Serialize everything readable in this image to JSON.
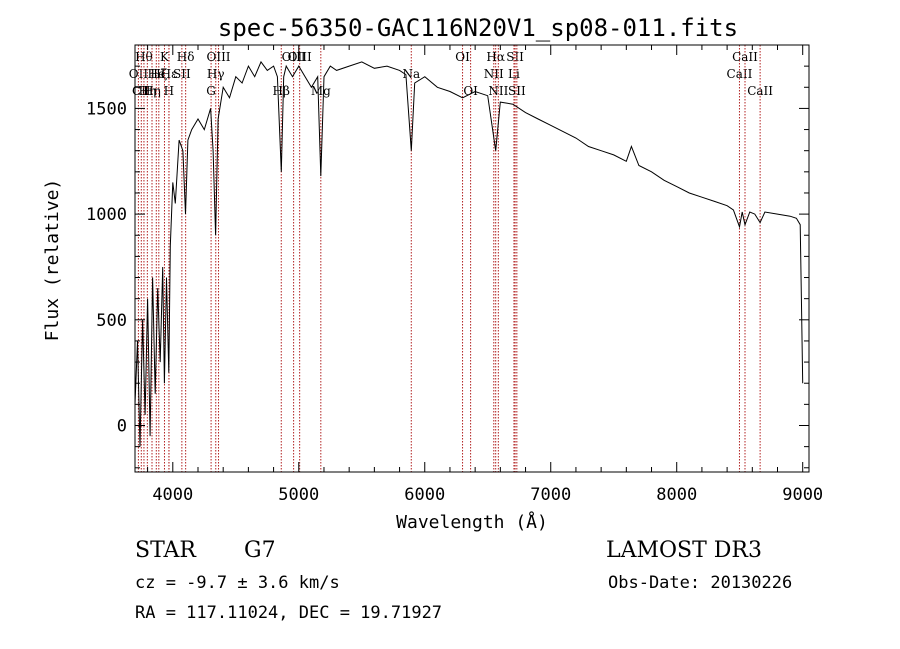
{
  "chart_data": {
    "type": "line",
    "title": "spec-56350-GAC116N20V1_sp08-011.fits",
    "xlabel": "Wavelength (Å)",
    "ylabel": "Flux (relative)",
    "xlim": [
      3700,
      9050
    ],
    "ylim": [
      -220,
      1800
    ],
    "xticks": [
      4000,
      5000,
      6000,
      7000,
      8000,
      9000
    ],
    "yticks": [
      0,
      500,
      1000,
      1500
    ],
    "xtick_labels": [
      "4000",
      "5000",
      "6000",
      "7000",
      "8000",
      "9000"
    ],
    "ytick_labels": [
      "0",
      "500",
      "1000",
      "1500"
    ],
    "line_color": "#000000",
    "marker_color": "#b22222",
    "spectrum": {
      "x": [
        3700,
        3720,
        3740,
        3760,
        3780,
        3800,
        3820,
        3840,
        3860,
        3880,
        3900,
        3920,
        3933,
        3950,
        3968,
        3980,
        4000,
        4020,
        4050,
        4080,
        4101,
        4120,
        4150,
        4200,
        4250,
        4300,
        4320,
        4340,
        4360,
        4400,
        4450,
        4500,
        4550,
        4600,
        4650,
        4700,
        4750,
        4800,
        4830,
        4861,
        4880,
        4900,
        4950,
        5000,
        5050,
        5100,
        5150,
        5175,
        5200,
        5250,
        5300,
        5400,
        5500,
        5600,
        5700,
        5800,
        5850,
        5893,
        5920,
        6000,
        6100,
        6200,
        6300,
        6400,
        6500,
        6563,
        6600,
        6700,
        6800,
        6900,
        7000,
        7100,
        7200,
        7300,
        7400,
        7500,
        7600,
        7640,
        7700,
        7800,
        7900,
        8000,
        8100,
        8200,
        8300,
        8400,
        8450,
        8498,
        8520,
        8542,
        8580,
        8620,
        8662,
        8700,
        8800,
        8900,
        8950,
        8980,
        8990,
        9000
      ],
      "y": [
        100,
        400,
        -100,
        500,
        50,
        600,
        -50,
        700,
        150,
        650,
        300,
        750,
        200,
        700,
        250,
        850,
        1150,
        1050,
        1350,
        1300,
        1000,
        1350,
        1400,
        1450,
        1400,
        1500,
        1300,
        900,
        1450,
        1600,
        1550,
        1650,
        1620,
        1700,
        1650,
        1720,
        1680,
        1700,
        1650,
        1200,
        1650,
        1700,
        1650,
        1700,
        1650,
        1600,
        1650,
        1180,
        1650,
        1700,
        1680,
        1700,
        1720,
        1690,
        1700,
        1680,
        1660,
        1300,
        1620,
        1650,
        1600,
        1580,
        1550,
        1580,
        1560,
        1300,
        1530,
        1520,
        1480,
        1450,
        1420,
        1390,
        1360,
        1320,
        1300,
        1280,
        1250,
        1320,
        1230,
        1200,
        1160,
        1130,
        1100,
        1080,
        1060,
        1040,
        1020,
        940,
        1010,
        950,
        1010,
        1000,
        960,
        1010,
        1000,
        990,
        980,
        950,
        600,
        200
      ]
    },
    "lines": [
      {
        "wl": 3727,
        "label": "OII",
        "row": 1
      },
      {
        "wl": 3750,
        "label": "CII",
        "row": 2
      },
      {
        "wl": 3771,
        "label": "Hθ",
        "row": 0
      },
      {
        "wl": 3798,
        "label": "Hη",
        "row": 2
      },
      {
        "wl": 3835,
        "label": "Hη",
        "row": 2
      },
      {
        "wl": 3869,
        "label": "He",
        "row": 1
      },
      {
        "wl": 3889,
        "label": "Hζ",
        "row": 1
      },
      {
        "wl": 3934,
        "label": "K",
        "row": 0
      },
      {
        "wl": 3969,
        "label": "H",
        "row": 2
      },
      {
        "wl": 3970,
        "label": "Hε",
        "row": 1
      },
      {
        "wl": 4072,
        "label": "SII",
        "row": 1
      },
      {
        "wl": 4102,
        "label": "Hδ",
        "row": 0
      },
      {
        "wl": 4304,
        "label": "G",
        "row": 2
      },
      {
        "wl": 4341,
        "label": "Hγ",
        "row": 1
      },
      {
        "wl": 4363,
        "label": "OIII",
        "row": 0
      },
      {
        "wl": 4861,
        "label": "Hβ",
        "row": 2
      },
      {
        "wl": 4959,
        "label": "OIII",
        "row": 0
      },
      {
        "wl": 5007,
        "label": "OIII",
        "row": 0
      },
      {
        "wl": 5175,
        "label": "Mg",
        "row": 2
      },
      {
        "wl": 5893,
        "label": "Na",
        "row": 1
      },
      {
        "wl": 6300,
        "label": "OI",
        "row": 0
      },
      {
        "wl": 6364,
        "label": "OI",
        "row": 2
      },
      {
        "wl": 6548,
        "label": "NII",
        "row": 1
      },
      {
        "wl": 6563,
        "label": "Hα",
        "row": 0
      },
      {
        "wl": 6584,
        "label": "NII",
        "row": 2
      },
      {
        "wl": 6708,
        "label": "Li",
        "row": 1
      },
      {
        "wl": 6717,
        "label": "SII",
        "row": 0
      },
      {
        "wl": 6731,
        "label": "SII",
        "row": 2
      },
      {
        "wl": 8498,
        "label": "CaII",
        "row": 1
      },
      {
        "wl": 8542,
        "label": "CaII",
        "row": 0
      },
      {
        "wl": 8662,
        "label": "CaII",
        "row": 2
      }
    ]
  },
  "info": {
    "object_class": "STAR",
    "subclass": "G7",
    "survey": "LAMOST DR3",
    "redshift": "cz = -9.7 ± 3.6 km/s",
    "obs_date": "Obs-Date: 20130226",
    "coords": "RA = 117.11024, DEC =  19.71927"
  }
}
